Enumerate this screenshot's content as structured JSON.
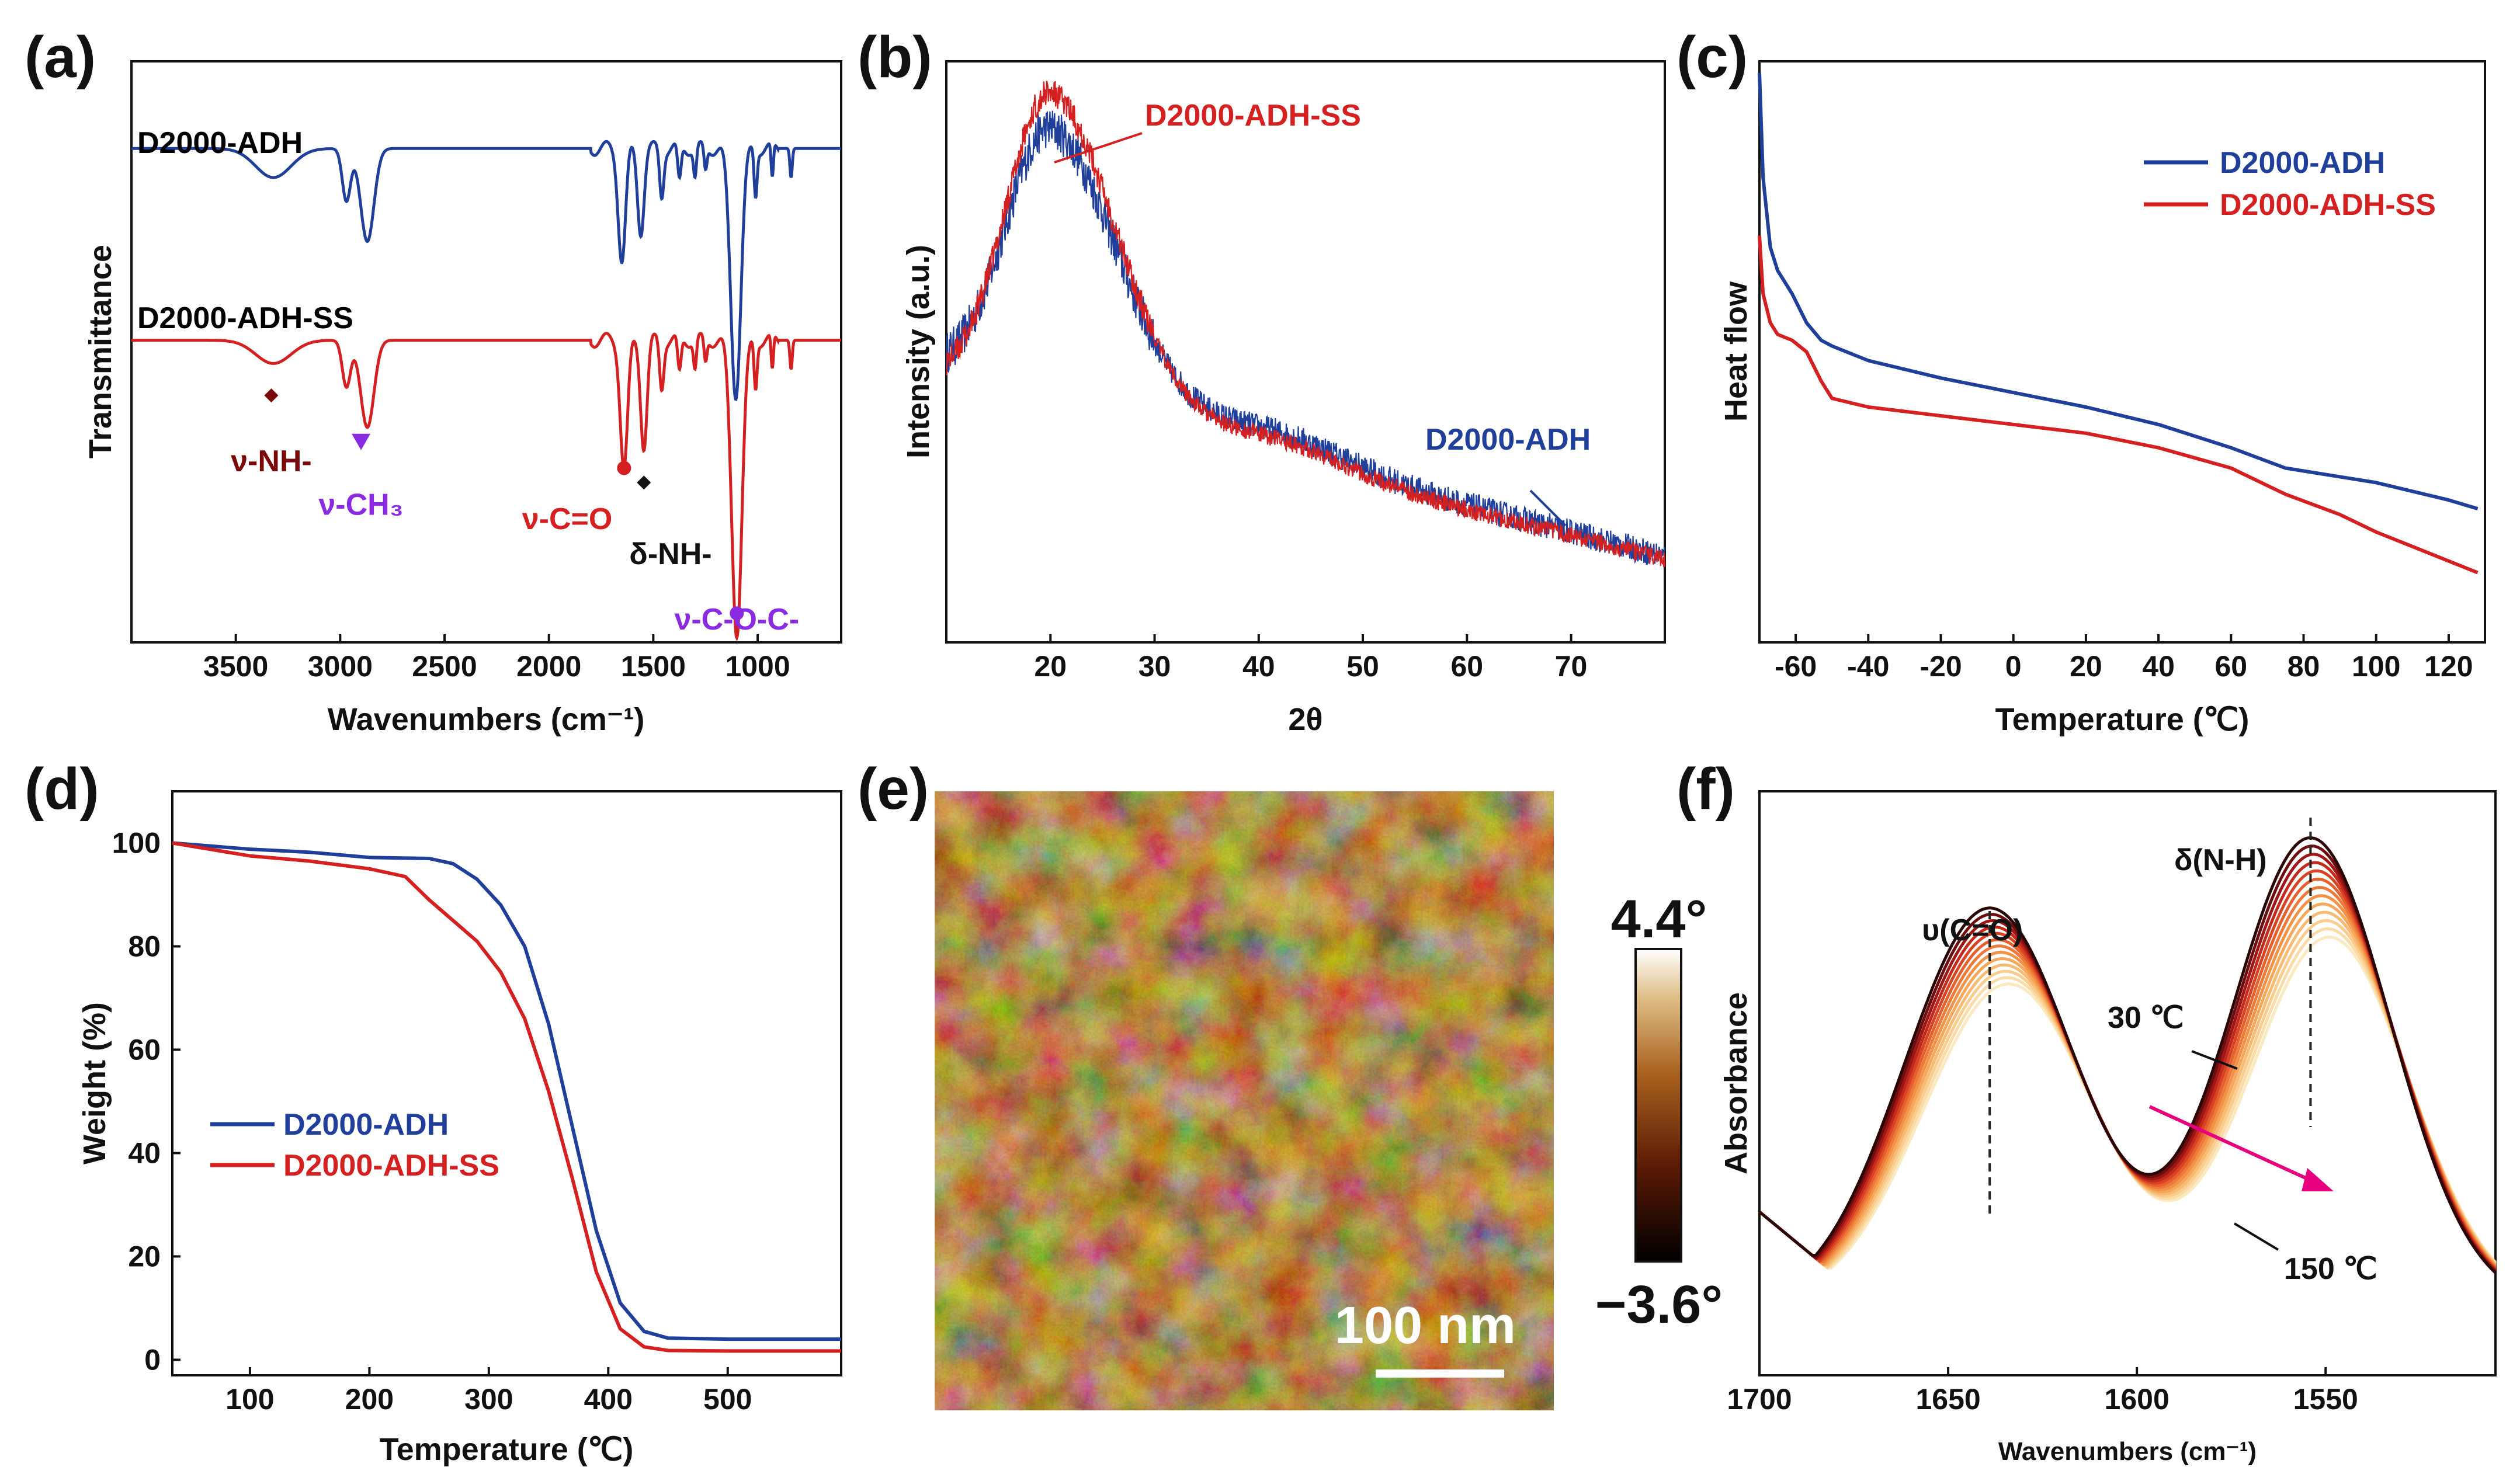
{
  "colors": {
    "blue": "#1f3f9a",
    "red": "#d42020",
    "darkred": "#7a0a0a",
    "purple": "#8a2be2",
    "black": "#111111",
    "magenta": "#e6007e"
  },
  "chart_data": [
    {
      "id": "a",
      "panel_label": "(a)",
      "type": "line",
      "xlabel": "Wavenumbers (cm⁻¹)",
      "ylabel": "Transmittance",
      "xlim": [
        4000,
        600
      ],
      "xticks": [
        3500,
        3000,
        2500,
        2000,
        1500,
        1000
      ],
      "series": [
        {
          "name": "D2000-ADH",
          "color": "blue",
          "offset": 0.85,
          "features": [
            [
              3320,
              120,
              0.05
            ],
            [
              2970,
              28,
              0.09
            ],
            [
              2870,
              45,
              0.16
            ],
            [
              1650,
              25,
              0.19
            ],
            [
              1560,
              22,
              0.14
            ],
            [
              1460,
              14,
              0.08
            ],
            [
              1375,
              12,
              0.06
            ],
            [
              1300,
              10,
              0.05
            ],
            [
              1250,
              10,
              0.04
            ],
            [
              1105,
              35,
              0.42
            ],
            [
              1010,
              10,
              0.08
            ],
            [
              930,
              8,
              0.06
            ],
            [
              840,
              8,
              0.05
            ]
          ]
        },
        {
          "name": "D2000-ADH-SS",
          "color": "red",
          "offset": 0.52,
          "features": [
            [
              3320,
              120,
              0.04
            ],
            [
              2970,
              28,
              0.08
            ],
            [
              2870,
              45,
              0.15
            ],
            [
              1640,
              25,
              0.22
            ],
            [
              1545,
              22,
              0.18
            ],
            [
              1460,
              14,
              0.08
            ],
            [
              1375,
              12,
              0.06
            ],
            [
              1300,
              10,
              0.05
            ],
            [
              1250,
              10,
              0.04
            ],
            [
              1100,
              35,
              0.5
            ],
            [
              1010,
              10,
              0.08
            ],
            [
              930,
              8,
              0.06
            ],
            [
              840,
              8,
              0.05
            ]
          ]
        }
      ],
      "annotations": [
        {
          "text": "ν-NH-",
          "color": "darkred",
          "marker": "diamond",
          "x": 3330
        },
        {
          "text": "ν-CH₃",
          "color": "purple",
          "marker": "triangle",
          "x": 2900
        },
        {
          "text": "ν-C=O",
          "color": "red",
          "marker": "circle",
          "x": 1640
        },
        {
          "text": "δ-NH-",
          "color": "black",
          "marker": "diamond",
          "x": 1545
        },
        {
          "text": "ν-C-O-C-",
          "color": "purple",
          "marker": "circle",
          "x": 1100
        }
      ]
    },
    {
      "id": "b",
      "panel_label": "(b)",
      "type": "line",
      "xlabel": "2θ",
      "ylabel": "Intensity (a.u.)",
      "xlim": [
        10,
        79
      ],
      "xticks": [
        20,
        30,
        40,
        50,
        60,
        70
      ],
      "series": [
        {
          "name": "D2000-ADH",
          "color": "blue",
          "peak": 20,
          "peak_height": 0.84,
          "base": 0.42,
          "noise": 0.045
        },
        {
          "name": "D2000-ADH-SS",
          "color": "red",
          "peak": 20,
          "peak_height": 0.9,
          "base": 0.4,
          "noise": 0.03
        }
      ]
    },
    {
      "id": "c",
      "panel_label": "(c)",
      "type": "line",
      "xlabel": "Temperature (℃)",
      "ylabel": "Heat flow",
      "xlim": [
        -70,
        130
      ],
      "xticks": [
        -60,
        -40,
        -20,
        0,
        20,
        40,
        60,
        80,
        100,
        120
      ],
      "legend_position": "top-right",
      "series": [
        {
          "name": "D2000-ADH",
          "color": "blue",
          "points": [
            [
              -70,
              0.98
            ],
            [
              -69,
              0.8
            ],
            [
              -67,
              0.68
            ],
            [
              -65,
              0.64
            ],
            [
              -61,
              0.6
            ],
            [
              -57,
              0.55
            ],
            [
              -53,
              0.52
            ],
            [
              -50,
              0.51
            ],
            [
              -40,
              0.485
            ],
            [
              -20,
              0.455
            ],
            [
              0,
              0.43
            ],
            [
              20,
              0.405
            ],
            [
              40,
              0.375
            ],
            [
              60,
              0.335
            ],
            [
              75,
              0.3
            ],
            [
              90,
              0.285
            ],
            [
              100,
              0.275
            ],
            [
              110,
              0.26
            ],
            [
              120,
              0.245
            ],
            [
              128,
              0.23
            ]
          ]
        },
        {
          "name": "D2000-ADH-SS",
          "color": "red",
          "points": [
            [
              -70,
              0.7
            ],
            [
              -69,
              0.6
            ],
            [
              -67,
              0.55
            ],
            [
              -65,
              0.53
            ],
            [
              -61,
              0.52
            ],
            [
              -57,
              0.5
            ],
            [
              -53,
              0.45
            ],
            [
              -50,
              0.42
            ],
            [
              -40,
              0.405
            ],
            [
              -20,
              0.39
            ],
            [
              0,
              0.375
            ],
            [
              20,
              0.36
            ],
            [
              40,
              0.335
            ],
            [
              60,
              0.3
            ],
            [
              75,
              0.255
            ],
            [
              90,
              0.22
            ],
            [
              100,
              0.19
            ],
            [
              110,
              0.165
            ],
            [
              120,
              0.14
            ],
            [
              128,
              0.12
            ]
          ]
        }
      ]
    },
    {
      "id": "d",
      "panel_label": "(d)",
      "type": "line",
      "xlabel": "Temperature (℃)",
      "ylabel": "Weight (%)",
      "xlim": [
        35,
        595
      ],
      "ylim": [
        -3,
        110
      ],
      "xticks": [
        100,
        200,
        300,
        400,
        500
      ],
      "yticks": [
        0,
        20,
        40,
        60,
        80,
        100
      ],
      "legend_position": "bottom-left",
      "series": [
        {
          "name": "D2000-ADH",
          "color": "blue",
          "points": [
            [
              35,
              100
            ],
            [
              100,
              98.8
            ],
            [
              150,
              98.2
            ],
            [
              200,
              97.2
            ],
            [
              250,
              97
            ],
            [
              270,
              96
            ],
            [
              290,
              93
            ],
            [
              310,
              88
            ],
            [
              330,
              80
            ],
            [
              350,
              65
            ],
            [
              370,
              45
            ],
            [
              390,
              25
            ],
            [
              410,
              11
            ],
            [
              430,
              5.5
            ],
            [
              450,
              4.2
            ],
            [
              500,
              4
            ],
            [
              595,
              4
            ]
          ]
        },
        {
          "name": "D2000-ADH-SS",
          "color": "red",
          "points": [
            [
              35,
              100
            ],
            [
              100,
              97.5
            ],
            [
              150,
              96.5
            ],
            [
              200,
              95
            ],
            [
              230,
              93.5
            ],
            [
              250,
              89
            ],
            [
              270,
              85
            ],
            [
              290,
              81
            ],
            [
              310,
              75
            ],
            [
              330,
              66
            ],
            [
              350,
              52
            ],
            [
              370,
              35
            ],
            [
              390,
              17
            ],
            [
              410,
              6
            ],
            [
              430,
              2.5
            ],
            [
              450,
              1.8
            ],
            [
              500,
              1.7
            ],
            [
              595,
              1.7
            ]
          ]
        }
      ]
    },
    {
      "id": "f",
      "panel_label": "(f)",
      "type": "line",
      "xlabel": "Wavenumbers (cm⁻¹)",
      "ylabel": "Absorbance",
      "xlim": [
        1700,
        1505
      ],
      "xticks": [
        1700,
        1650,
        1600,
        1550
      ],
      "series_count": 13,
      "temperature_range_c": [
        30,
        150
      ],
      "labels": {
        "co": "υ(C=O)",
        "nh": "δ(N-H)",
        "t_start": "30 ℃",
        "t_end": "150 ℃"
      },
      "dashed_lines": [
        1639,
        1554
      ]
    }
  ],
  "panel_e": {
    "label": "(e)",
    "scalebar": "100 nm",
    "colorbar_max": "4.4°",
    "colorbar_min": "−3.6°"
  }
}
